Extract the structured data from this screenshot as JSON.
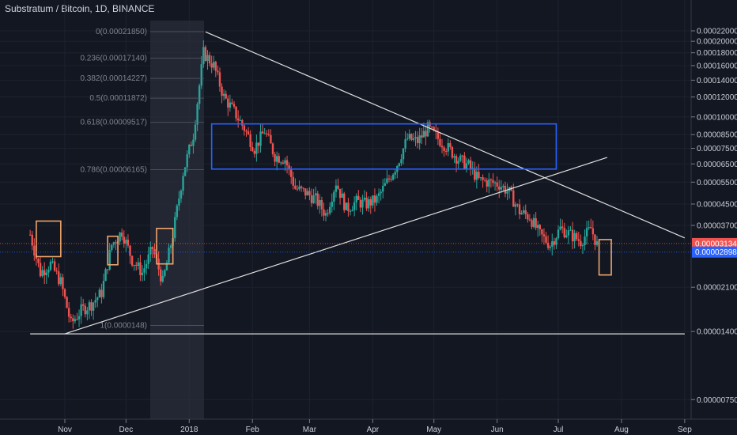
{
  "chart_data": {
    "type": "candlestick",
    "title": "Substratum / Bitcoin, 1D, BINANCE",
    "y_axis": {
      "ticks": [
        "0.00022000",
        "0.00020000",
        "0.00018000",
        "0.00016000",
        "0.00014000",
        "0.00012000",
        "0.00010000",
        "0.00008500",
        "0.00007500",
        "0.00006500",
        "0.00005500",
        "0.00004500",
        "0.00003700",
        "0.00002100",
        "0.00001400",
        "0.00000750"
      ],
      "tick_values": [
        0.00022,
        0.0002,
        0.00018,
        0.00016,
        0.00014,
        0.00012,
        0.0001,
        8.5e-05,
        7.5e-05,
        6.5e-05,
        5.5e-05,
        4.5e-05,
        3.7e-05,
        2.1e-05,
        1.4e-05,
        7.5e-06
      ],
      "scale": "log",
      "range": [
        6.5e-06,
        0.00024
      ]
    },
    "x_axis": {
      "ticks": [
        "Nov",
        "Dec",
        "2018",
        "Feb",
        "Mar",
        "Apr",
        "May",
        "Jun",
        "Jul",
        "Aug",
        "Sep"
      ]
    },
    "price_tags": [
      {
        "label": "0.00003134",
        "value": 3.134e-05,
        "color": "#ef5350"
      },
      {
        "label": "0.00002898",
        "value": 2.898e-05,
        "color": "#2962ff"
      }
    ],
    "fib_levels": [
      {
        "label": "0(0.00021850)",
        "value": 0.0002185
      },
      {
        "label": "0.236(0.00017140)",
        "value": 0.0001714
      },
      {
        "label": "0.382(0.00014227)",
        "value": 0.00014227
      },
      {
        "label": "0.5(0.00011872)",
        "value": 0.00011872
      },
      {
        "label": "0.618(0.00009517)",
        "value": 9.517e-05
      },
      {
        "label": "0.786(0.00006165)",
        "value": 6.165e-05
      },
      {
        "label": "1(0.0000148)",
        "value": 1.48e-05
      }
    ],
    "series": [
      {
        "dates": [
          "2017-10-15",
          "2017-10-20",
          "2017-10-25",
          "2017-10-30",
          "2017-11-04",
          "2017-11-09",
          "2017-11-14",
          "2017-11-19",
          "2017-11-24",
          "2017-11-29",
          "2017-12-04",
          "2017-12-09",
          "2017-12-14",
          "2017-12-19",
          "2017-12-24",
          "2017-12-29",
          "2018-01-03",
          "2018-01-08",
          "2018-01-13",
          "2018-01-18",
          "2018-01-23",
          "2018-01-28",
          "2018-02-02",
          "2018-02-07",
          "2018-02-12",
          "2018-02-17",
          "2018-02-22",
          "2018-02-27",
          "2018-03-04",
          "2018-03-09",
          "2018-03-14",
          "2018-03-19",
          "2018-03-24",
          "2018-03-29",
          "2018-04-03",
          "2018-04-08",
          "2018-04-13",
          "2018-04-18",
          "2018-04-23",
          "2018-04-28",
          "2018-05-03",
          "2018-05-08",
          "2018-05-13",
          "2018-05-18",
          "2018-05-23",
          "2018-05-28",
          "2018-06-02",
          "2018-06-07",
          "2018-06-12",
          "2018-06-17",
          "2018-06-22",
          "2018-06-27",
          "2018-07-02",
          "2018-07-07",
          "2018-07-12",
          "2018-07-17",
          "2018-07-20"
        ],
        "values": [
          3.4e-05,
          2.4e-05,
          2.6e-05,
          2.2e-05,
          1.5e-05,
          1.7e-05,
          1.8e-05,
          2e-05,
          3.1e-05,
          3.5e-05,
          2.7e-05,
          2.4e-05,
          3e-05,
          2.2e-05,
          3.4e-05,
          6e-05,
          8.5e-05,
          0.00018,
          0.00016,
          0.00012,
          0.000105,
          9e-05,
          7.5e-05,
          8.8e-05,
          7e-05,
          6.8e-05,
          5.2e-05,
          5e-05,
          4.7e-05,
          4.1e-05,
          5.5e-05,
          4.3e-05,
          4.6e-05,
          4.5e-05,
          4.7e-05,
          5.5e-05,
          6.5e-05,
          8.2e-05,
          8e-05,
          9e-05,
          8.2e-05,
          7.5e-05,
          6.8e-05,
          6.4e-05,
          5.6e-05,
          5.5e-05,
          5.4e-05,
          5e-05,
          4.2e-05,
          4e-05,
          3.4e-05,
          3.1e-05,
          3.6e-05,
          3.4e-05,
          3.2e-05,
          3.6e-05,
          3.1e-05
        ]
      }
    ],
    "grid": true
  }
}
